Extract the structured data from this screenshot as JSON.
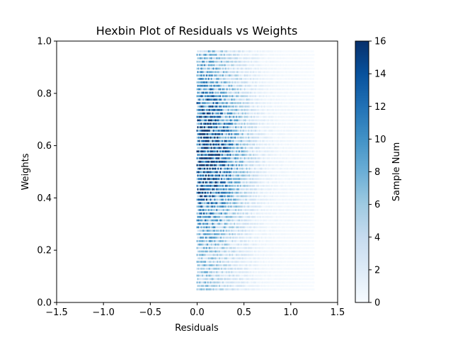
{
  "chart_data": {
    "type": "hexbin",
    "title": "Hexbin Plot of Residuals vs Weights",
    "xlabel": "Residuals",
    "ylabel": "Weights",
    "xlim": [
      -1.5,
      1.5
    ],
    "ylim": [
      0.0,
      1.0
    ],
    "xticks": [
      -1.5,
      -1.0,
      -0.5,
      0.0,
      0.5,
      1.0,
      1.5
    ],
    "xtick_labels": [
      "−1.5",
      "−1.0",
      "−0.5",
      "0.0",
      "0.5",
      "1.0",
      "1.5"
    ],
    "yticks": [
      0.0,
      0.2,
      0.4,
      0.6,
      0.8,
      1.0
    ],
    "ytick_labels": [
      "0.0",
      "0.2",
      "0.4",
      "0.6",
      "0.8",
      "1.0"
    ],
    "grid": false,
    "colormap": "Blues",
    "colormap_stops": [
      "#f7fbff",
      "#deebf7",
      "#c6dbef",
      "#9ecae1",
      "#6baed6",
      "#4292c6",
      "#2171b5",
      "#08519c",
      "#08306b"
    ],
    "colorbar": {
      "label": "Sample Num",
      "range": [
        0,
        16
      ],
      "ticks": [
        0,
        2,
        4,
        6,
        8,
        10,
        12,
        14,
        16
      ],
      "tick_labels": [
        "0",
        "2",
        "4",
        "6",
        "8",
        "10",
        "12",
        "14",
        "16"
      ]
    },
    "data_extent": {
      "x": [
        0.0,
        1.25
      ],
      "y": [
        0.05,
        0.97
      ]
    },
    "density_profile": {
      "x_centers": [
        0.02,
        0.08,
        0.14,
        0.2,
        0.26,
        0.32,
        0.38,
        0.44,
        0.5,
        0.56,
        0.62,
        0.68,
        0.74,
        0.8,
        0.86,
        0.92,
        0.98,
        1.04,
        1.1,
        1.16,
        1.22
      ],
      "relative_density": [
        0.9,
        1.0,
        0.95,
        0.85,
        0.75,
        0.65,
        0.55,
        0.45,
        0.36,
        0.28,
        0.21,
        0.15,
        0.11,
        0.08,
        0.06,
        0.05,
        0.04,
        0.03,
        0.02,
        0.015,
        0.01
      ],
      "peak_weight": 0.58,
      "peak_count": 16
    }
  }
}
